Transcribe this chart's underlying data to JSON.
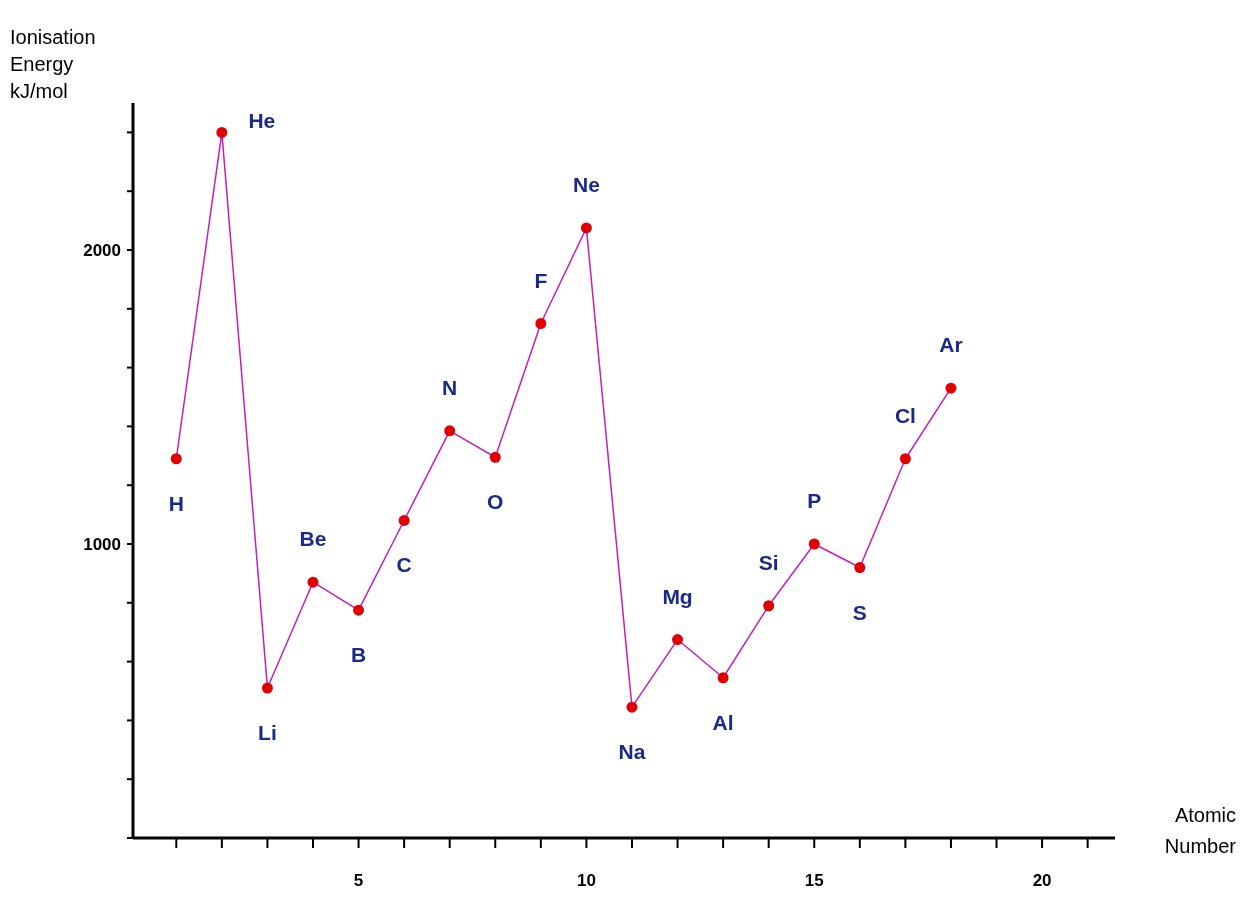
{
  "chart_data": {
    "type": "line",
    "xlabel": "Atomic Number",
    "ylabel": "Ionisation Energy kJ/mol",
    "x": [
      1,
      2,
      3,
      4,
      5,
      6,
      7,
      8,
      9,
      10,
      11,
      12,
      13,
      14,
      15,
      16,
      17,
      18
    ],
    "series": [
      {
        "color": "#c020c0",
        "values": [
          1290,
          2400,
          510,
          870,
          775,
          1080,
          1385,
          1295,
          1750,
          2075,
          445,
          675,
          545,
          790,
          1000,
          920,
          1290,
          1530
        ]
      }
    ],
    "xlim": [
      0.05,
      21.6
    ],
    "xticks": [
      {
        "value": 1,
        "label": null
      },
      {
        "value": 2,
        "label": null
      },
      {
        "value": 3,
        "label": null
      },
      {
        "value": 4,
        "label": null
      },
      5,
      {
        "value": 6,
        "label": null
      },
      {
        "value": 7,
        "label": null
      },
      {
        "value": 8,
        "label": null
      },
      {
        "value": 9,
        "label": null
      },
      10,
      {
        "value": 11,
        "label": null
      },
      {
        "value": 12,
        "label": null
      },
      {
        "value": 13,
        "label": null
      },
      {
        "value": 14,
        "label": null
      },
      15,
      {
        "value": 16,
        "label": null
      },
      {
        "value": 17,
        "label": null
      },
      {
        "value": 18,
        "label": null
      },
      {
        "value": 19,
        "label": null
      },
      20,
      {
        "value": 21,
        "label": null
      }
    ],
    "ylim": [
      0,
      2500
    ],
    "yticks": [
      {
        "value": 0,
        "label": null
      },
      {
        "value": 200,
        "label": null
      },
      {
        "value": 400,
        "label": null
      },
      {
        "value": 600,
        "label": null
      },
      {
        "value": 800,
        "label": null
      },
      1000,
      {
        "value": 1200,
        "label": null
      },
      {
        "value": 1400,
        "label": null
      },
      {
        "value": 1600,
        "label": null
      },
      {
        "value": 1800,
        "label": null
      },
      2000,
      {
        "value": 2200,
        "label": null
      },
      {
        "value": 2400,
        "label": null
      }
    ],
    "marker": "circle",
    "grid": false,
    "annotations": [
      {
        "text": "H",
        "x": 1,
        "y": 1290
      },
      {
        "text": "He",
        "x": 2,
        "y": 2400
      },
      {
        "text": "Li",
        "x": 3,
        "y": 510
      },
      {
        "text": "Be",
        "x": 4,
        "y": 870
      },
      {
        "text": "B",
        "x": 5,
        "y": 775
      },
      {
        "text": "C",
        "x": 6,
        "y": 1080
      },
      {
        "text": "N",
        "x": 7,
        "y": 1385
      },
      {
        "text": "O",
        "x": 8,
        "y": 1295
      },
      {
        "text": "F",
        "x": 9,
        "y": 1750
      },
      {
        "text": "Ne",
        "x": 10,
        "y": 2075
      },
      {
        "text": "Na",
        "x": 11,
        "y": 445
      },
      {
        "text": "Mg",
        "x": 12,
        "y": 675
      },
      {
        "text": "Al",
        "x": 13,
        "y": 545
      },
      {
        "text": "Si",
        "x": 14,
        "y": 790
      },
      {
        "text": "P",
        "x": 15,
        "y": 1000
      },
      {
        "text": "S",
        "x": 16,
        "y": 920
      },
      {
        "text": "Cl",
        "x": 17,
        "y": 1290
      },
      {
        "text": "Ar",
        "x": 18,
        "y": 1530
      }
    ]
  }
}
